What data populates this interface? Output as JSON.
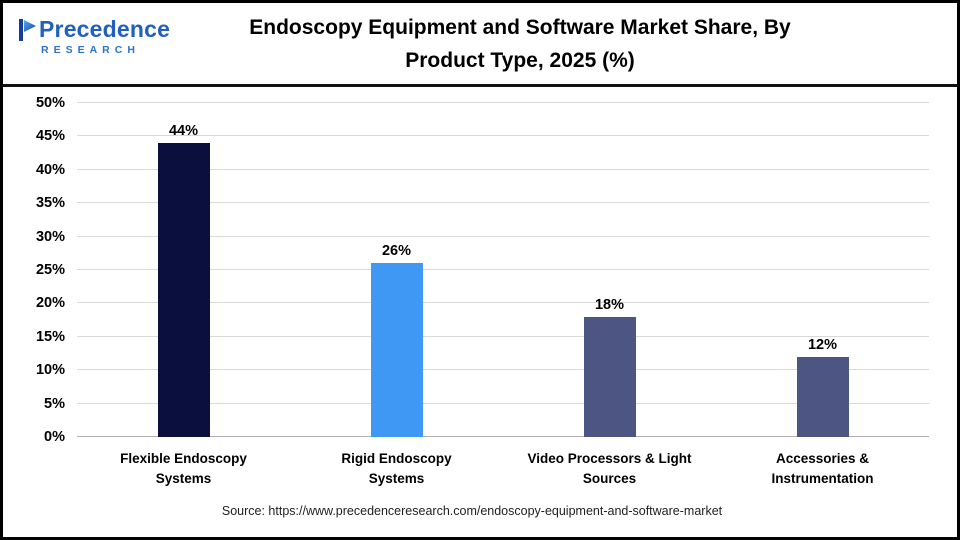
{
  "header": {
    "logo": {
      "name": "Precedence",
      "subtitle": "RESEARCH"
    },
    "title_lines": {
      "0": "Endoscopy Equipment and Software Market Share, By",
      "1": "Product Type, 2025 (%)"
    }
  },
  "chart_data": {
    "type": "bar",
    "title": "Endoscopy Equipment and Software Market Share, By Product Type, 2025 (%)",
    "categories": [
      "Flexible Endoscopy Systems",
      "Rigid Endoscopy Systems",
      "Video Processors & Light Sources",
      "Accessories & Instrumentation"
    ],
    "values": [
      44,
      26,
      18,
      12
    ],
    "value_labels": [
      "44%",
      "26%",
      "18%",
      "12%"
    ],
    "bar_colors": [
      "#0a0f3d",
      "#3f98f4",
      "#4d5583",
      "#4d5583"
    ],
    "xlabel": "",
    "ylabel": "",
    "ylim": [
      0,
      50
    ],
    "ytick_step": 5,
    "yticks": [
      "0%",
      "5%",
      "10%",
      "15%",
      "20%",
      "25%",
      "30%",
      "35%",
      "40%",
      "45%",
      "50%"
    ],
    "grid": true,
    "legend": "none"
  },
  "colors": {
    "brand_blue": "#2260bd",
    "gridline": "#d9d9d9"
  },
  "footer": {
    "source": "Source: https://www.precedenceresearch.com/endoscopy-equipment-and-software-market"
  }
}
